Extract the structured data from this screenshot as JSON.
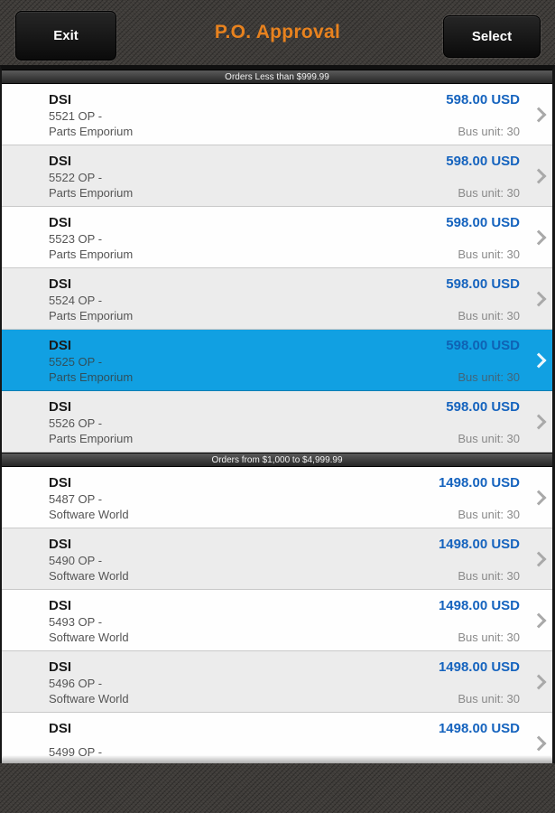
{
  "header": {
    "title": "P.O. Approval",
    "exit_label": "Exit",
    "select_label": "Select"
  },
  "colors": {
    "title_accent": "#e8821e",
    "amount_blue": "#1563be",
    "selected_row": "#11a0e2"
  },
  "icons": {
    "row_chevron": "chevron-right"
  },
  "sections": [
    {
      "title": "Orders Less than $999.99",
      "rows": [
        {
          "vendor": "DSI",
          "po": "5521 OP -",
          "supplier": "Parts Emporium",
          "amount": "598.00 USD",
          "bus_unit": "Bus unit: 30",
          "selected": false
        },
        {
          "vendor": "DSI",
          "po": "5522 OP -",
          "supplier": "Parts Emporium",
          "amount": "598.00 USD",
          "bus_unit": "Bus unit: 30",
          "selected": false
        },
        {
          "vendor": "DSI",
          "po": "5523 OP -",
          "supplier": "Parts Emporium",
          "amount": "598.00 USD",
          "bus_unit": "Bus unit: 30",
          "selected": false
        },
        {
          "vendor": "DSI",
          "po": "5524 OP -",
          "supplier": "Parts Emporium",
          "amount": "598.00 USD",
          "bus_unit": "Bus unit: 30",
          "selected": false
        },
        {
          "vendor": "DSI",
          "po": "5525 OP -",
          "supplier": "Parts Emporium",
          "amount": "598.00 USD",
          "bus_unit": "Bus unit: 30",
          "selected": true
        },
        {
          "vendor": "DSI",
          "po": "5526 OP -",
          "supplier": "Parts Emporium",
          "amount": "598.00 USD",
          "bus_unit": "Bus unit: 30",
          "selected": false
        }
      ]
    },
    {
      "title": "Orders from $1,000 to $4,999.99",
      "rows": [
        {
          "vendor": "DSI",
          "po": "5487 OP -",
          "supplier": "Software World",
          "amount": "1498.00 USD",
          "bus_unit": "Bus unit: 30",
          "selected": false
        },
        {
          "vendor": "DSI",
          "po": "5490 OP -",
          "supplier": "Software World",
          "amount": "1498.00 USD",
          "bus_unit": "Bus unit: 30",
          "selected": false
        },
        {
          "vendor": "DSI",
          "po": "5493 OP -",
          "supplier": "Software World",
          "amount": "1498.00 USD",
          "bus_unit": "Bus unit: 30",
          "selected": false
        },
        {
          "vendor": "DSI",
          "po": "5496 OP -",
          "supplier": "Software World",
          "amount": "1498.00 USD",
          "bus_unit": "Bus unit: 30",
          "selected": false
        },
        {
          "vendor": "DSI",
          "po": "5499 OP -",
          "supplier": "",
          "amount": "1498.00 USD",
          "bus_unit": "",
          "selected": false
        }
      ]
    }
  ]
}
